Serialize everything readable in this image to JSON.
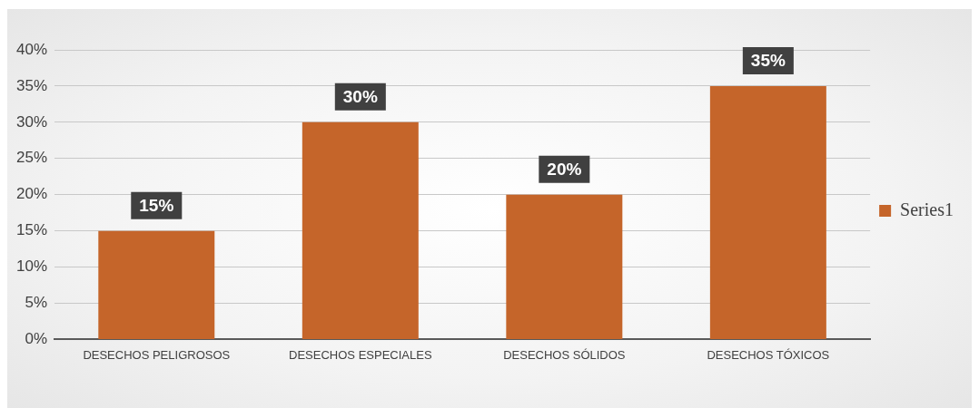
{
  "chart_data": {
    "type": "bar",
    "categories": [
      "DESECHOS PELIGROSOS",
      "DESECHOS ESPECIALES",
      "DESECHOS SÓLIDOS",
      "DESECHOS TÓXICOS"
    ],
    "series": [
      {
        "name": "Series1",
        "color": "#c5652a",
        "values": [
          15,
          30,
          20,
          35
        ],
        "value_labels": [
          "15%",
          "30%",
          "20%",
          "35%"
        ]
      }
    ],
    "ylim": [
      0,
      40
    ],
    "yticks": [
      {
        "value": 0,
        "label": "0%"
      },
      {
        "value": 5,
        "label": "5%"
      },
      {
        "value": 10,
        "label": "10%"
      },
      {
        "value": 15,
        "label": "15%"
      },
      {
        "value": 20,
        "label": "20%"
      },
      {
        "value": 25,
        "label": "25%"
      },
      {
        "value": 30,
        "label": "30%"
      },
      {
        "value": 35,
        "label": "35%"
      },
      {
        "value": 40,
        "label": "40%"
      }
    ],
    "grid": "y",
    "legend": "right"
  }
}
